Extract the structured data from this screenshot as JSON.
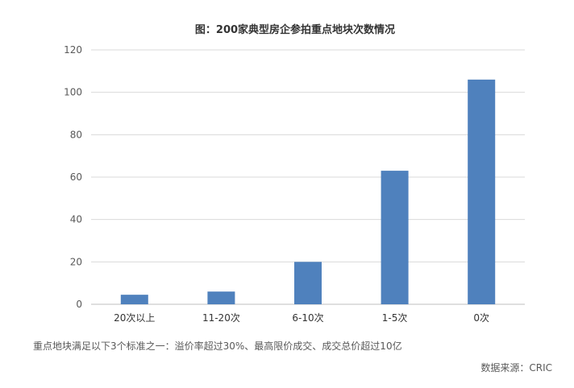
{
  "chart_data": {
    "type": "bar",
    "title": "图：200家典型房企参拍重点地块次数情况",
    "categories": [
      "20次以上",
      "11-20次",
      "6-10次",
      "1-5次",
      "0次"
    ],
    "values": [
      4.5,
      6,
      20,
      63,
      106
    ],
    "xlabel": "",
    "ylabel": "",
    "ylim": [
      0,
      120
    ],
    "yticks": [
      0,
      20,
      40,
      60,
      80,
      100,
      120
    ],
    "grid": true,
    "bar_color": "#4F81BD",
    "grid_color": "#D9D9D9"
  },
  "footnote": "重点地块满足以下3个标准之一：溢价率超过30%、最高限价成交、成交总价超过10亿",
  "source": "数据来源：CRIC"
}
